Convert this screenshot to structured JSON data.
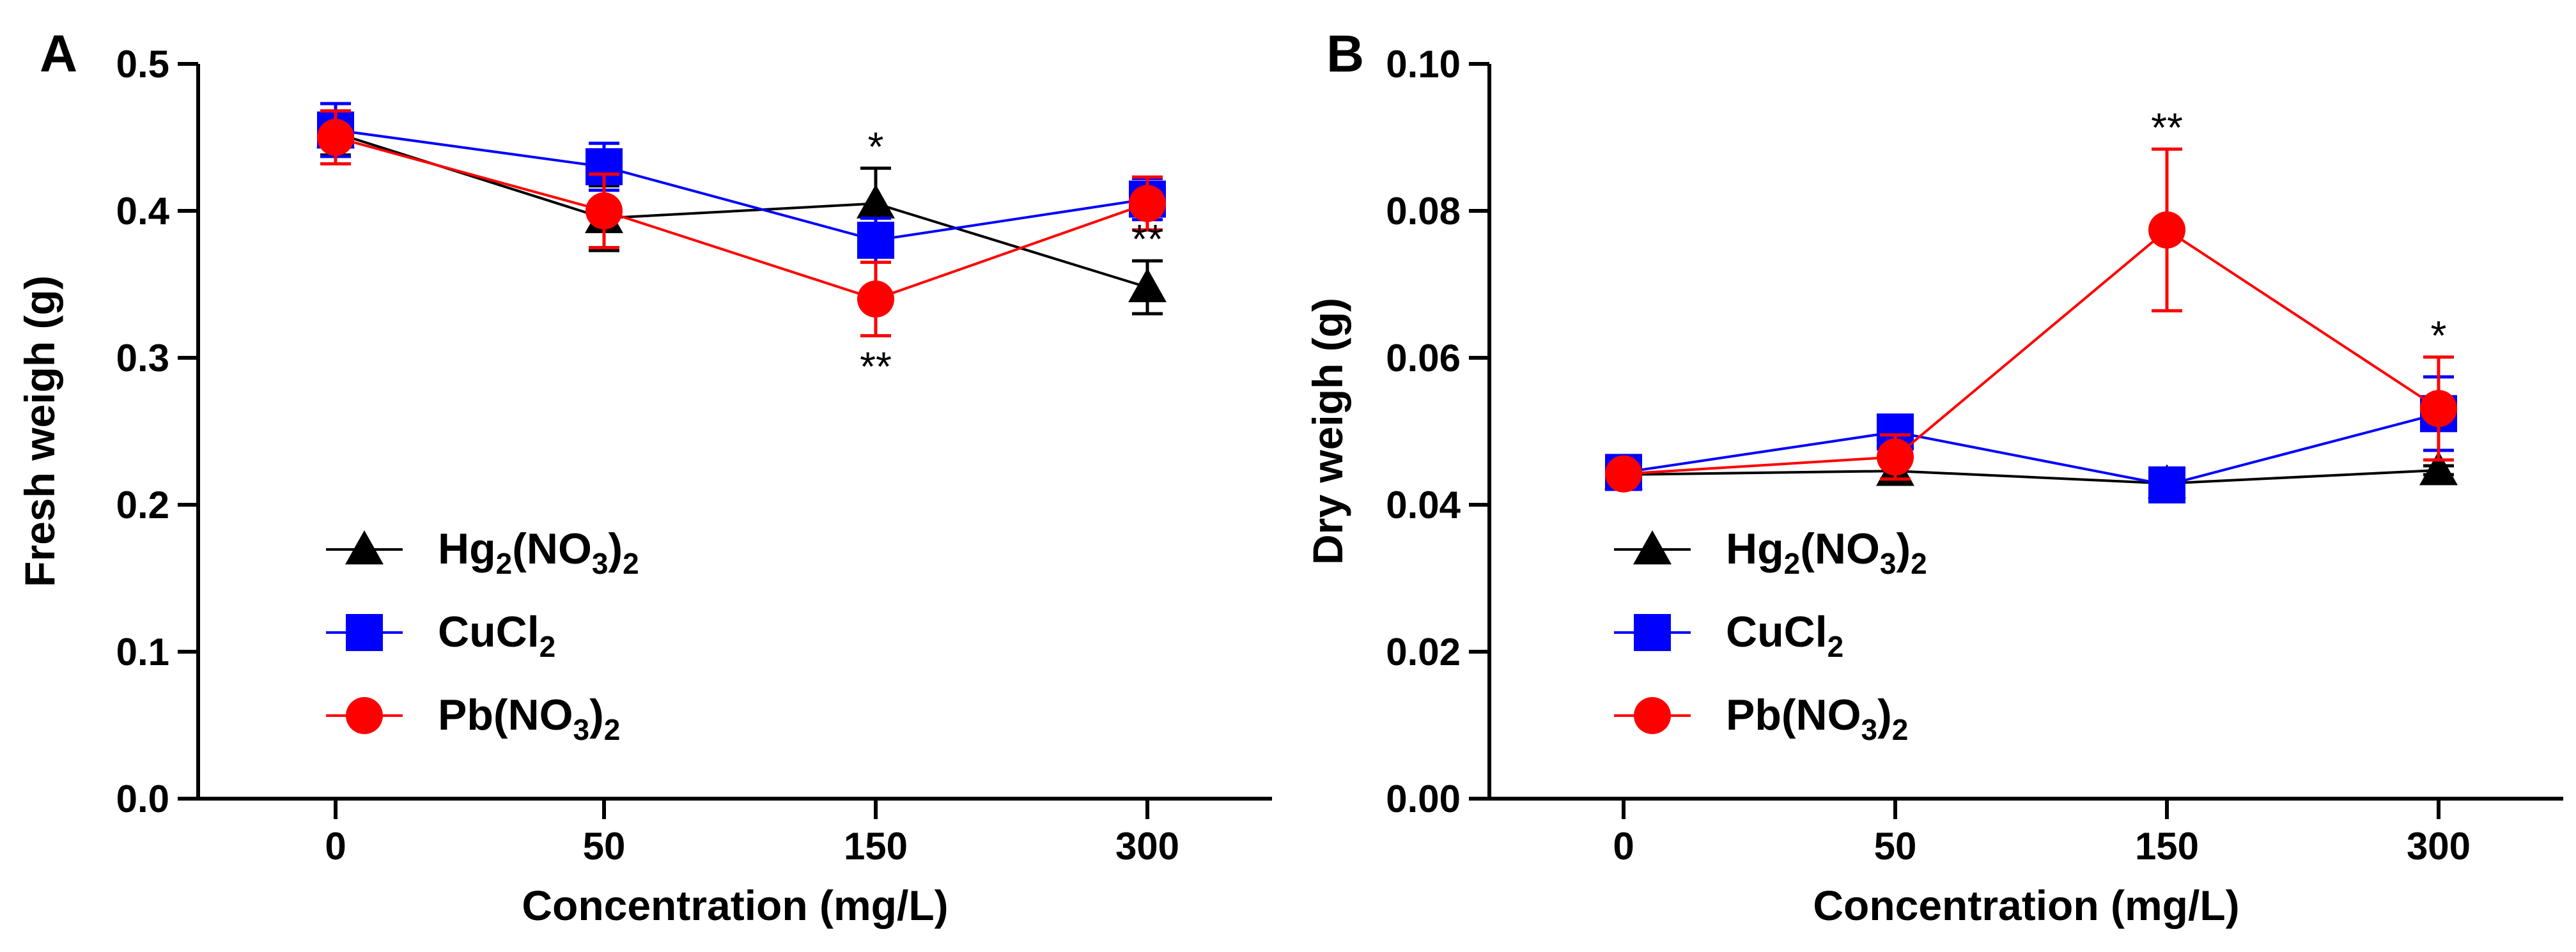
{
  "chart_data": [
    {
      "panel": "A",
      "type": "line",
      "categories": [
        "0",
        "50",
        "150",
        "300"
      ],
      "xlabel": "Concentration (mg/L)",
      "ylabel": "Fresh weigh (g)",
      "ylim": [
        0.0,
        0.5
      ],
      "yticks": [
        "0.0",
        "0.1",
        "0.2",
        "0.3",
        "0.4",
        "0.5"
      ],
      "legend_position": "bottom-left",
      "series": [
        {
          "name": "Hg2(NO3)2",
          "base": "Hg",
          "sub1": "2",
          "mid": "(NO",
          "sub2": "3",
          "tail": ")",
          "sub3": "2",
          "color": "#000000",
          "marker": "triangle",
          "values": [
            0.453,
            0.395,
            0.405,
            0.348
          ],
          "errors": [
            0.015,
            0.022,
            0.024,
            0.018
          ]
        },
        {
          "name": "CuCl2",
          "base": "CuCl",
          "sub1": "2",
          "mid": "",
          "sub2": "",
          "tail": "",
          "sub3": "",
          "color": "#0000ff",
          "marker": "square",
          "values": [
            0.455,
            0.43,
            0.38,
            0.408
          ],
          "errors": [
            0.018,
            0.016,
            0.015,
            0.014
          ]
        },
        {
          "name": "Pb(NO3)2",
          "base": "Pb(NO",
          "sub1": "3",
          "mid": ")",
          "sub2": "2",
          "tail": "",
          "sub3": "",
          "color": "#ff0000",
          "marker": "circle",
          "values": [
            0.45,
            0.4,
            0.34,
            0.405
          ],
          "errors": [
            0.018,
            0.025,
            0.025,
            0.018
          ]
        }
      ],
      "annotations": [
        {
          "text": "*",
          "category": "150",
          "series": "Hg2(NO3)2",
          "place": "above"
        },
        {
          "text": "**",
          "category": "150",
          "series": "Pb(NO3)2",
          "place": "below"
        },
        {
          "text": "**",
          "category": "300",
          "series": "Hg2(NO3)2",
          "place": "above"
        }
      ]
    },
    {
      "panel": "B",
      "type": "line",
      "categories": [
        "0",
        "50",
        "150",
        "300"
      ],
      "xlabel": "Concentration (mg/L)",
      "ylabel": "Dry weigh (g)",
      "ylim": [
        0.0,
        0.1
      ],
      "yticks": [
        "0.00",
        "0.02",
        "0.04",
        "0.06",
        "0.08",
        "0.10"
      ],
      "legend_position": "bottom-left",
      "series": [
        {
          "name": "Hg2(NO3)2",
          "base": "Hg",
          "sub1": "2",
          "mid": "(NO",
          "sub2": "3",
          "tail": ")",
          "sub3": "2",
          "color": "#000000",
          "marker": "triangle",
          "values": [
            0.0441,
            0.0446,
            0.0429,
            0.0447
          ],
          "errors": [
            0.0007,
            0.0015,
            0.0007,
            0.0006
          ]
        },
        {
          "name": "CuCl2",
          "base": "CuCl",
          "sub1": "2",
          "mid": "",
          "sub2": "",
          "tail": "",
          "sub3": "",
          "color": "#0000ff",
          "marker": "square",
          "values": [
            0.0444,
            0.0499,
            0.0427,
            0.0524
          ],
          "errors": [
            0.0009,
            0.0009,
            0.0007,
            0.005
          ]
        },
        {
          "name": "Pb(NO3)2",
          "base": "Pb(NO",
          "sub1": "3",
          "mid": ")",
          "sub2": "2",
          "tail": "",
          "sub3": "",
          "color": "#ff0000",
          "marker": "circle",
          "values": [
            0.0442,
            0.0465,
            0.0774,
            0.0531
          ],
          "errors": [
            0.0009,
            0.003,
            0.011,
            0.007
          ]
        }
      ],
      "annotations": [
        {
          "text": "**",
          "category": "150",
          "series": "Pb(NO3)2",
          "place": "above"
        },
        {
          "text": "*",
          "category": "300",
          "series": "Pb(NO3)2",
          "place": "above"
        }
      ]
    }
  ]
}
